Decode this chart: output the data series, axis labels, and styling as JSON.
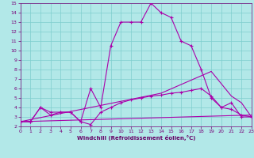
{
  "xlabel": "Windchill (Refroidissement éolien,°C)",
  "bg_color": "#b2e8e8",
  "grid_color": "#7ecece",
  "line_color": "#aa00aa",
  "xmin": 0,
  "xmax": 23,
  "ymin": 2,
  "ymax": 15,
  "line1_x": [
    0,
    1,
    2,
    3,
    4,
    5,
    6,
    7,
    8,
    9,
    10,
    11,
    12,
    13,
    14,
    15,
    16,
    17,
    18,
    19,
    20,
    21,
    22,
    23
  ],
  "line1_y": [
    2.5,
    2.5,
    4.0,
    3.5,
    3.5,
    3.5,
    2.5,
    6.0,
    4.0,
    10.5,
    13.0,
    13.0,
    13.0,
    15.0,
    14.0,
    13.5,
    11.0,
    10.5,
    8.0,
    5.0,
    4.0,
    4.5,
    3.0,
    3.0
  ],
  "line2_x": [
    0,
    1,
    2,
    3,
    4,
    5,
    6,
    7,
    8,
    9,
    10,
    11,
    12,
    13,
    14,
    15,
    16,
    17,
    18,
    19,
    20,
    21,
    22,
    23
  ],
  "line2_y": [
    2.5,
    2.5,
    4.0,
    3.2,
    3.5,
    3.5,
    2.5,
    2.2,
    3.5,
    4.0,
    4.5,
    4.8,
    5.0,
    5.2,
    5.3,
    5.5,
    5.6,
    5.8,
    6.0,
    5.2,
    4.0,
    3.8,
    3.2,
    3.0
  ],
  "line3_x": [
    0,
    23
  ],
  "line3_y": [
    2.5,
    3.2
  ],
  "line4_x": [
    0,
    14,
    19,
    21,
    22,
    23
  ],
  "line4_y": [
    2.5,
    5.5,
    7.8,
    5.2,
    4.5,
    3.0
  ]
}
